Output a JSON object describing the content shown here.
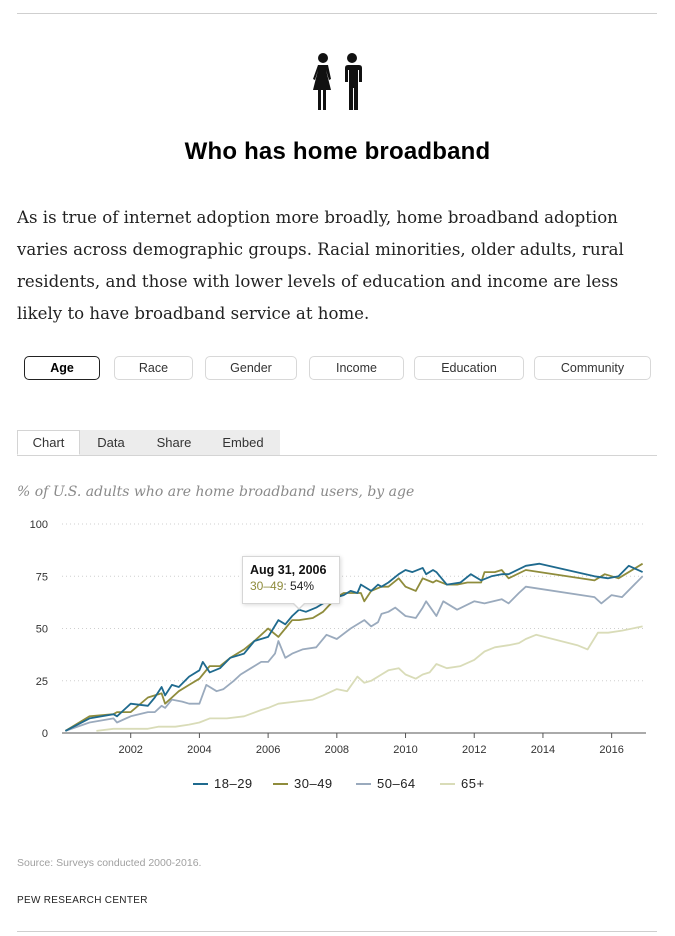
{
  "header": {
    "icon": "people-icon",
    "title": "Who has home broadband"
  },
  "intro": "As is true of internet adoption more broadly, home broadband adoption varies across demographic groups. Racial minorities, older adults, rural residents, and those with lower levels of education and income are less likely to have broadband service at home.",
  "filters": {
    "active": "Age",
    "items": [
      "Age",
      "Race",
      "Gender",
      "Income",
      "Education",
      "Community"
    ]
  },
  "tabs": {
    "active": "Chart",
    "items": [
      "Chart",
      "Data",
      "Share",
      "Embed"
    ]
  },
  "tooltip": {
    "date": "Aug 31, 2006",
    "series": "30–49",
    "value": "54%"
  },
  "source": "Source: Surveys conducted 2000-2016.",
  "brand": "PEW RESEARCH CENTER",
  "chart_data": {
    "type": "line",
    "title": "% of U.S. adults who are home broadband users, by age",
    "xlim": [
      2000.0,
      2017.0
    ],
    "ylim": [
      0,
      100
    ],
    "x_ticks": [
      2002,
      2004,
      2006,
      2008,
      2010,
      2012,
      2014,
      2016
    ],
    "y_ticks": [
      0,
      25,
      50,
      75,
      100
    ],
    "grid": true,
    "legend_position": "bottom",
    "series": [
      {
        "name": "18–29",
        "color": "#1f6a8e",
        "points": [
          [
            2000.1,
            1
          ],
          [
            2000.8,
            7
          ],
          [
            2001.5,
            9
          ],
          [
            2001.6,
            8
          ],
          [
            2002.0,
            14
          ],
          [
            2002.5,
            13
          ],
          [
            2002.7,
            17
          ],
          [
            2002.9,
            22
          ],
          [
            2003.0,
            18
          ],
          [
            2003.2,
            23
          ],
          [
            2003.4,
            22
          ],
          [
            2003.7,
            27
          ],
          [
            2004.0,
            30
          ],
          [
            2004.1,
            34
          ],
          [
            2004.3,
            29
          ],
          [
            2004.6,
            31
          ],
          [
            2004.9,
            36
          ],
          [
            2005.3,
            38
          ],
          [
            2005.6,
            44
          ],
          [
            2006.0,
            46
          ],
          [
            2006.3,
            54
          ],
          [
            2006.5,
            52
          ],
          [
            2006.7,
            56
          ],
          [
            2006.9,
            59
          ],
          [
            2007.1,
            58
          ],
          [
            2007.4,
            60
          ],
          [
            2007.6,
            62
          ],
          [
            2007.8,
            63
          ],
          [
            2008.0,
            65
          ],
          [
            2008.2,
            66
          ],
          [
            2008.4,
            68
          ],
          [
            2008.6,
            67
          ],
          [
            2008.7,
            71
          ],
          [
            2009.0,
            68
          ],
          [
            2009.2,
            71
          ],
          [
            2009.3,
            70
          ],
          [
            2009.5,
            72
          ],
          [
            2009.8,
            76
          ],
          [
            2010.0,
            78
          ],
          [
            2010.2,
            77
          ],
          [
            2010.5,
            79
          ],
          [
            2010.6,
            76
          ],
          [
            2010.8,
            78
          ],
          [
            2010.9,
            77
          ],
          [
            2011.0,
            75
          ],
          [
            2011.2,
            71
          ],
          [
            2011.6,
            72
          ],
          [
            2011.9,
            76
          ],
          [
            2012.2,
            73
          ],
          [
            2012.5,
            75
          ],
          [
            2012.8,
            76
          ],
          [
            2013.0,
            76
          ],
          [
            2013.5,
            80
          ],
          [
            2013.9,
            81
          ],
          [
            2015.5,
            75
          ],
          [
            2015.9,
            74
          ],
          [
            2016.2,
            75
          ],
          [
            2016.5,
            80
          ],
          [
            2016.9,
            77
          ]
        ]
      },
      {
        "name": "30–49",
        "color": "#8f8c3c",
        "points": [
          [
            2000.1,
            1
          ],
          [
            2000.8,
            8
          ],
          [
            2001.5,
            9
          ],
          [
            2001.6,
            10
          ],
          [
            2002.0,
            10
          ],
          [
            2002.5,
            17
          ],
          [
            2002.7,
            18
          ],
          [
            2002.9,
            19
          ],
          [
            2003.0,
            14
          ],
          [
            2003.2,
            17
          ],
          [
            2003.4,
            20
          ],
          [
            2003.7,
            23
          ],
          [
            2004.0,
            26
          ],
          [
            2004.1,
            28
          ],
          [
            2004.3,
            32
          ],
          [
            2004.6,
            32
          ],
          [
            2004.9,
            36
          ],
          [
            2005.3,
            40
          ],
          [
            2005.6,
            44
          ],
          [
            2006.0,
            50
          ],
          [
            2006.3,
            46
          ],
          [
            2006.5,
            50
          ],
          [
            2006.7,
            54
          ],
          [
            2006.9,
            54
          ],
          [
            2007.3,
            55
          ],
          [
            2007.6,
            58
          ],
          [
            2008.0,
            65
          ],
          [
            2008.2,
            67
          ],
          [
            2008.4,
            67
          ],
          [
            2008.7,
            67
          ],
          [
            2008.8,
            63
          ],
          [
            2009.0,
            68
          ],
          [
            2009.3,
            70
          ],
          [
            2009.5,
            70
          ],
          [
            2009.8,
            74
          ],
          [
            2010.0,
            70
          ],
          [
            2010.3,
            68
          ],
          [
            2010.5,
            74
          ],
          [
            2010.8,
            72
          ],
          [
            2010.9,
            73
          ],
          [
            2011.2,
            71
          ],
          [
            2011.5,
            71
          ],
          [
            2011.8,
            72
          ],
          [
            2012.2,
            72
          ],
          [
            2012.3,
            77
          ],
          [
            2012.6,
            77
          ],
          [
            2012.8,
            78
          ],
          [
            2013.0,
            74
          ],
          [
            2013.5,
            78
          ],
          [
            2015.5,
            73
          ],
          [
            2015.8,
            76
          ],
          [
            2016.2,
            74
          ],
          [
            2016.9,
            81
          ]
        ]
      },
      {
        "name": "50–64",
        "color": "#9aaabd",
        "points": [
          [
            2000.1,
            1
          ],
          [
            2000.8,
            5
          ],
          [
            2001.5,
            7
          ],
          [
            2001.6,
            5
          ],
          [
            2002.0,
            8
          ],
          [
            2002.5,
            10
          ],
          [
            2002.7,
            10
          ],
          [
            2002.9,
            13
          ],
          [
            2003.0,
            12
          ],
          [
            2003.2,
            16
          ],
          [
            2003.5,
            15
          ],
          [
            2003.7,
            14
          ],
          [
            2004.0,
            14
          ],
          [
            2004.2,
            23
          ],
          [
            2004.5,
            20
          ],
          [
            2004.7,
            21
          ],
          [
            2005.0,
            25
          ],
          [
            2005.2,
            28
          ],
          [
            2005.5,
            31
          ],
          [
            2005.8,
            34
          ],
          [
            2006.0,
            34
          ],
          [
            2006.2,
            38
          ],
          [
            2006.3,
            44
          ],
          [
            2006.5,
            36
          ],
          [
            2006.7,
            38
          ],
          [
            2007.0,
            40
          ],
          [
            2007.4,
            41
          ],
          [
            2007.7,
            47
          ],
          [
            2008.0,
            45
          ],
          [
            2008.4,
            50
          ],
          [
            2008.8,
            54
          ],
          [
            2009.0,
            51
          ],
          [
            2009.2,
            53
          ],
          [
            2009.3,
            57
          ],
          [
            2009.5,
            58
          ],
          [
            2009.7,
            60
          ],
          [
            2010.0,
            56
          ],
          [
            2010.3,
            55
          ],
          [
            2010.5,
            60
          ],
          [
            2010.6,
            63
          ],
          [
            2010.9,
            56
          ],
          [
            2011.1,
            63
          ],
          [
            2011.5,
            59
          ],
          [
            2012.0,
            63
          ],
          [
            2012.3,
            62
          ],
          [
            2012.8,
            64
          ],
          [
            2013.0,
            62
          ],
          [
            2013.3,
            67
          ],
          [
            2013.5,
            70
          ],
          [
            2015.5,
            65
          ],
          [
            2015.7,
            62
          ],
          [
            2016.0,
            66
          ],
          [
            2016.3,
            65
          ],
          [
            2016.9,
            75
          ]
        ]
      },
      {
        "name": "65+",
        "color": "#d9dcb8",
        "points": [
          [
            2001.0,
            1
          ],
          [
            2001.5,
            2
          ],
          [
            2002.0,
            2
          ],
          [
            2002.5,
            2
          ],
          [
            2002.8,
            3
          ],
          [
            2003.0,
            3
          ],
          [
            2003.3,
            3
          ],
          [
            2003.7,
            4
          ],
          [
            2004.0,
            5
          ],
          [
            2004.3,
            7
          ],
          [
            2004.8,
            7
          ],
          [
            2005.3,
            8
          ],
          [
            2005.8,
            11
          ],
          [
            2006.0,
            12
          ],
          [
            2006.3,
            14
          ],
          [
            2006.8,
            15
          ],
          [
            2007.3,
            16
          ],
          [
            2007.6,
            18
          ],
          [
            2008.0,
            21
          ],
          [
            2008.3,
            20
          ],
          [
            2008.6,
            27
          ],
          [
            2008.8,
            24
          ],
          [
            2009.0,
            25
          ],
          [
            2009.3,
            28
          ],
          [
            2009.5,
            30
          ],
          [
            2009.8,
            31
          ],
          [
            2010.0,
            28
          ],
          [
            2010.3,
            26
          ],
          [
            2010.5,
            28
          ],
          [
            2010.7,
            29
          ],
          [
            2010.9,
            33
          ],
          [
            2011.2,
            31
          ],
          [
            2011.6,
            32
          ],
          [
            2012.0,
            35
          ],
          [
            2012.3,
            39
          ],
          [
            2012.6,
            41
          ],
          [
            2013.0,
            42
          ],
          [
            2013.3,
            43
          ],
          [
            2013.5,
            45
          ],
          [
            2013.8,
            47
          ],
          [
            2015.0,
            42
          ],
          [
            2015.3,
            40
          ],
          [
            2015.6,
            48
          ],
          [
            2015.9,
            48
          ],
          [
            2016.3,
            49
          ],
          [
            2016.9,
            51
          ]
        ]
      }
    ]
  }
}
